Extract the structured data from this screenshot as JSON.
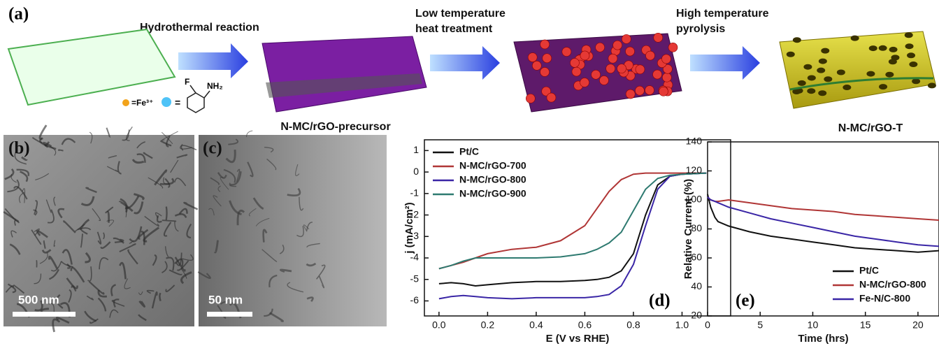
{
  "schematic": {
    "label": "(a)",
    "steps": [
      [
        "Hydrothermal reaction"
      ],
      [
        "Low temperature",
        "heat treatment"
      ],
      [
        "High temperature",
        "pyrolysis"
      ]
    ],
    "products": [
      "N-MC/rGO-precursor",
      "N-MC/rGO-T"
    ],
    "legend": {
      "fe": "=Fe³⁺",
      "molecule": "=",
      "substituent": "F",
      "amine": "NH₂"
    }
  },
  "images": [
    {
      "label": "(b)",
      "scale_bar": "500 nm"
    },
    {
      "label": "(c)",
      "scale_bar": "50 nm"
    }
  ],
  "chart_data": [
    {
      "type": "line",
      "annotation": "(d)",
      "xlabel": "E (V vs RHE)",
      "ylabel": "j (mA/cm²)",
      "x": [
        0,
        0.05,
        0.1,
        0.15,
        0.2,
        0.3,
        0.4,
        0.5,
        0.6,
        0.65,
        0.7,
        0.75,
        0.8,
        0.85,
        0.9,
        0.95,
        1.0,
        1.1
      ],
      "series": [
        {
          "name": "Pt/C",
          "color": "#111111",
          "values": [
            -5.2,
            -5.15,
            -5.2,
            -5.3,
            -5.25,
            -5.15,
            -5.1,
            -5.1,
            -5.05,
            -5.0,
            -4.9,
            -4.6,
            -3.8,
            -2.0,
            -0.6,
            -0.2,
            -0.1,
            -0.05
          ]
        },
        {
          "name": "N-MC/rGO-700",
          "color": "#b03636",
          "values": [
            -4.5,
            -4.35,
            -4.2,
            -4.0,
            -3.8,
            -3.6,
            -3.5,
            -3.2,
            -2.5,
            -1.7,
            -0.9,
            -0.35,
            -0.1,
            -0.05,
            -0.05,
            -0.05,
            -0.05,
            -0.05
          ]
        },
        {
          "name": "N-MC/rGO-800",
          "color": "#3a26a6",
          "values": [
            -5.9,
            -5.8,
            -5.75,
            -5.8,
            -5.85,
            -5.9,
            -5.85,
            -5.85,
            -5.85,
            -5.8,
            -5.7,
            -5.3,
            -4.3,
            -2.5,
            -0.8,
            -0.2,
            -0.1,
            -0.05
          ]
        },
        {
          "name": "N-MC/rGO-900",
          "color": "#2e7a70",
          "values": [
            -4.5,
            -4.35,
            -4.15,
            -4.0,
            -4.0,
            -4.0,
            -4.0,
            -3.95,
            -3.8,
            -3.6,
            -3.3,
            -2.8,
            -1.8,
            -0.8,
            -0.3,
            -0.15,
            -0.1,
            -0.05
          ]
        }
      ],
      "xlim": [
        -0.06,
        1.2
      ],
      "ylim": [
        -6.7,
        1.5
      ],
      "xticks": [
        {
          "value": 0,
          "label": "0.0"
        },
        {
          "value": 0.2,
          "label": "0.2"
        },
        {
          "value": 0.4,
          "label": "0.4"
        },
        {
          "value": 0.6,
          "label": "0.6"
        },
        {
          "value": 0.8,
          "label": "0.8"
        },
        {
          "value": 1,
          "label": "1.0"
        }
      ],
      "yticks": [
        1,
        0,
        -1,
        -2,
        -3,
        -4,
        -5,
        -6
      ],
      "legend": "upper left"
    },
    {
      "type": "line",
      "annotation": "(e)",
      "xlabel": "Time (hrs)",
      "ylabel": "Relative Current (%)",
      "x": [
        0,
        0.3,
        0.7,
        1,
        2,
        4,
        6,
        8,
        10,
        12,
        14,
        16,
        18,
        20,
        22
      ],
      "series": [
        {
          "name": "Pt/C",
          "color": "#111111",
          "values": [
            104,
            95,
            88,
            85,
            82,
            78,
            75,
            73,
            71,
            69,
            67,
            66,
            65,
            64,
            65
          ]
        },
        {
          "name": "N-MC/rGO-800",
          "color": "#b03636",
          "values": [
            102,
            100,
            99,
            99,
            100,
            98,
            96,
            94,
            93,
            92,
            90,
            89,
            88,
            87,
            86
          ]
        },
        {
          "name": "Fe-N/C-800",
          "color": "#3a26a6",
          "values": [
            102,
            100,
            99,
            98,
            95,
            91,
            87,
            84,
            81,
            78,
            75,
            73,
            71,
            69,
            68
          ]
        }
      ],
      "xlim": [
        0,
        22
      ],
      "ylim": [
        20,
        140
      ],
      "xticks": [
        0,
        5,
        10,
        15,
        20
      ],
      "yticks": [
        20,
        40,
        60,
        80,
        100,
        120,
        140
      ],
      "legend": "lower right"
    }
  ]
}
